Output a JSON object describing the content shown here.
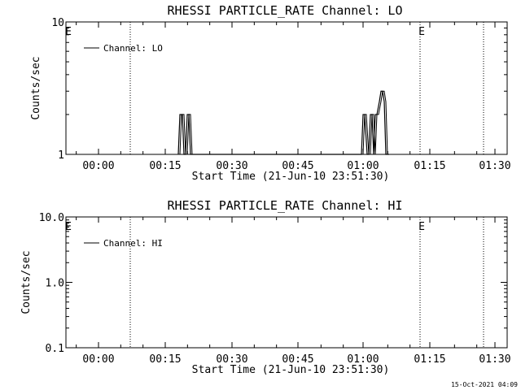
{
  "footer": {
    "timestamp": "15-Oct-2021 04:09"
  },
  "chart_data": [
    {
      "type": "line",
      "title": "RHESSI PARTICLE_RATE Channel: LO",
      "xlabel": "Start Time (21-Jun-10 23:51:30)",
      "ylabel": "Counts/sec",
      "yscale": "log",
      "ylim": [
        1,
        10
      ],
      "yticks": [
        "1",
        "10"
      ],
      "xlim_minutes": [
        -6,
        32.5
      ],
      "xticks": [
        "00:00",
        "00:15",
        "00:30",
        "00:45",
        "01:00",
        "01:15",
        "01:30"
      ],
      "legend": {
        "label": "Channel: LO",
        "placement": "top-left"
      },
      "markers": [
        {
          "label": "E",
          "x_minutes": -6
        },
        {
          "label": "E",
          "x_minutes": 24.8
        }
      ],
      "dotted_lines_minutes": [
        1.9,
        24.8,
        31.3
      ],
      "series": [
        {
          "name": "Channel: LO",
          "x_minutes": [
            15.6,
            15.75,
            15.85,
            16.0,
            16.2,
            16.35,
            16.5,
            16.65,
            31.2,
            31.35,
            31.5,
            31.65,
            31.8,
            31.95,
            32.1,
            32.25,
            32.4,
            32.55,
            32.7,
            32.85,
            33.0,
            33.15,
            33.3,
            33.45,
            33.6
          ],
          "y": [
            1,
            2,
            2,
            1,
            1,
            2,
            2,
            1,
            1,
            2,
            2,
            1,
            1,
            2,
            2,
            1,
            2,
            2,
            2.5,
            3,
            3,
            2.5,
            1,
            1,
            1
          ]
        }
      ]
    },
    {
      "type": "line",
      "title": "RHESSI PARTICLE_RATE Channel: HI",
      "xlabel": "Start Time (21-Jun-10 23:51:30)",
      "ylabel": "Counts/sec",
      "yscale": "log",
      "ylim": [
        0.1,
        10
      ],
      "yticks": [
        "0.1",
        "1.0",
        "10.0"
      ],
      "xlim_minutes": [
        -6,
        32.5
      ],
      "xticks": [
        "00:00",
        "00:15",
        "00:30",
        "00:45",
        "01:00",
        "01:15",
        "01:30"
      ],
      "legend": {
        "label": "Channel: HI",
        "placement": "top-left"
      },
      "markers": [
        {
          "label": "E",
          "x_minutes": -6
        },
        {
          "label": "E",
          "x_minutes": 24.8
        }
      ],
      "dotted_lines_minutes": [
        1.9,
        24.8,
        31.3
      ],
      "series": [
        {
          "name": "Channel: HI",
          "x_minutes": [],
          "y": []
        }
      ]
    }
  ]
}
